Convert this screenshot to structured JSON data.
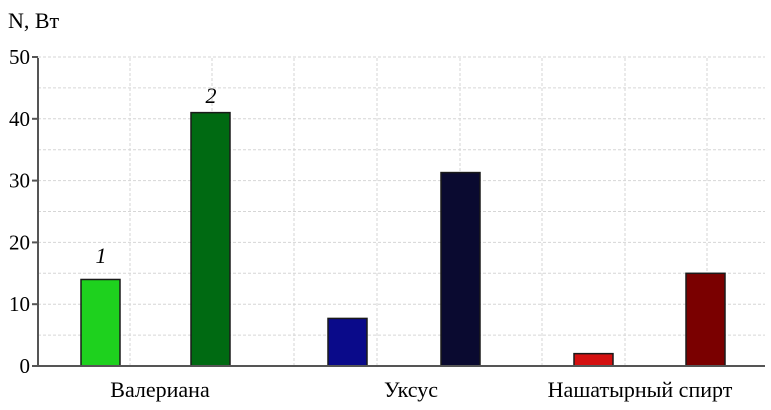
{
  "chart_data": {
    "type": "bar",
    "ylabel": "N, Вт",
    "ylim": [
      0,
      50
    ],
    "yticks": [
      0,
      10,
      20,
      30,
      40,
      50
    ],
    "categories": [
      "Валериана",
      "Уксус",
      "Нашатырный спирт"
    ],
    "series": [
      {
        "values": [
          14,
          7.7,
          2
        ],
        "colors": [
          "#1ed11e",
          "#0a0a8a",
          "#d41010"
        ]
      },
      {
        "values": [
          41,
          31.3,
          15
        ],
        "colors": [
          "#006a12",
          "#0a0a30",
          "#7a0000"
        ]
      }
    ],
    "series_markers": [
      "1",
      "2"
    ],
    "grid": true
  }
}
